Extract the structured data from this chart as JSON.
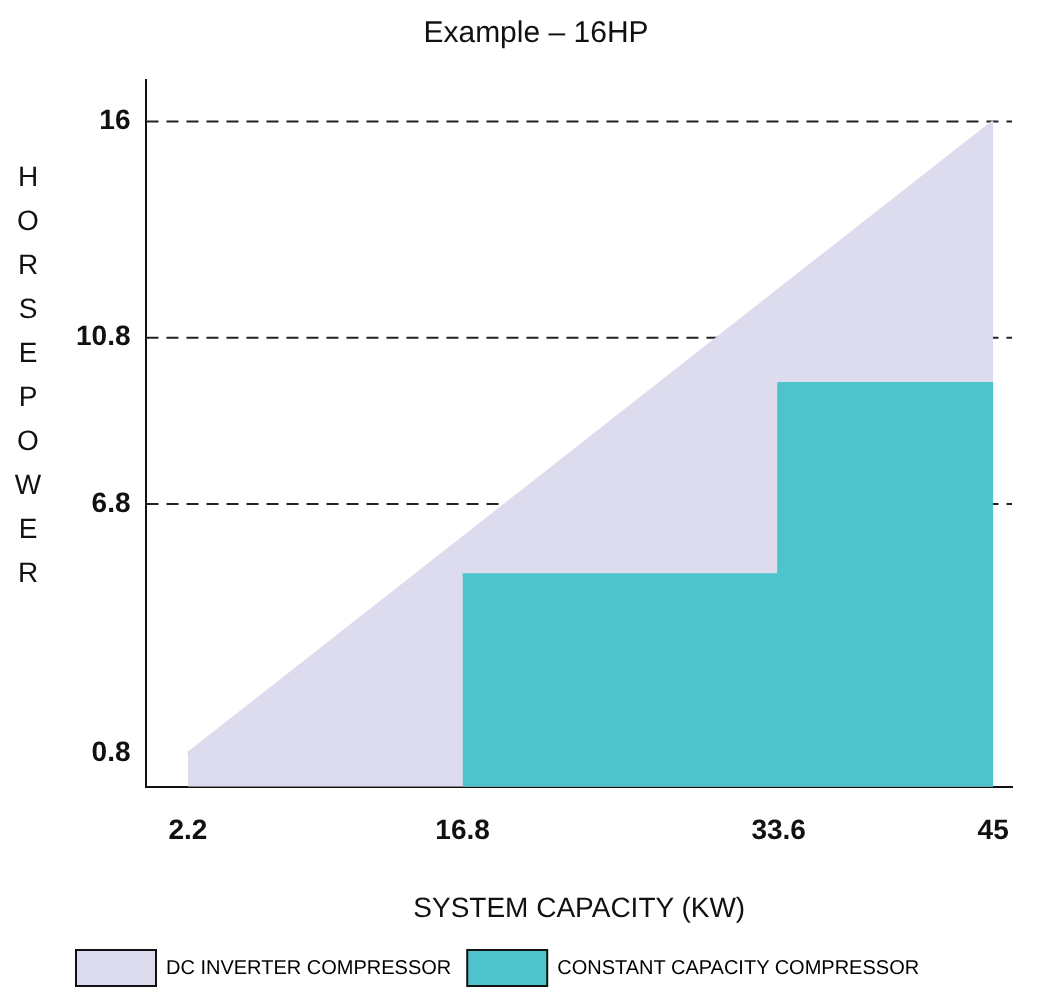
{
  "chart_data": {
    "type": "area",
    "title": "Example – 16HP",
    "xlabel": "SYSTEM CAPACITY (KW)",
    "ylabel": "HORSEPOWER",
    "xlim": [
      0,
      46
    ],
    "ylim": [
      0,
      17
    ],
    "xticks": [
      2.2,
      16.8,
      33.6,
      45
    ],
    "yticks": [
      0.8,
      6.8,
      10.8,
      16
    ],
    "grid": false,
    "legend": "bottom",
    "marker": "none",
    "series": [
      {
        "name": "DC INVERTER COMPRESSOR",
        "type": "area",
        "color": "#dcdcee",
        "x": [
          2.2,
          45
        ],
        "values": [
          0.8,
          16
        ]
      },
      {
        "name": "CONSTANT CAPACITY COMPRESSOR",
        "type": "area",
        "color": "#4ec3cb",
        "x": [
          16.8,
          33.6,
          33.6,
          45
        ],
        "values": [
          5.1,
          5.1,
          9.7,
          9.7
        ]
      }
    ],
    "ref_lines": [
      {
        "axis": "y",
        "value": 16,
        "line_style": "dashed"
      },
      {
        "axis": "y",
        "value": 10.8,
        "line_style": "dashed"
      },
      {
        "axis": "y",
        "value": 6.8,
        "line_style": "dashed"
      }
    ]
  }
}
